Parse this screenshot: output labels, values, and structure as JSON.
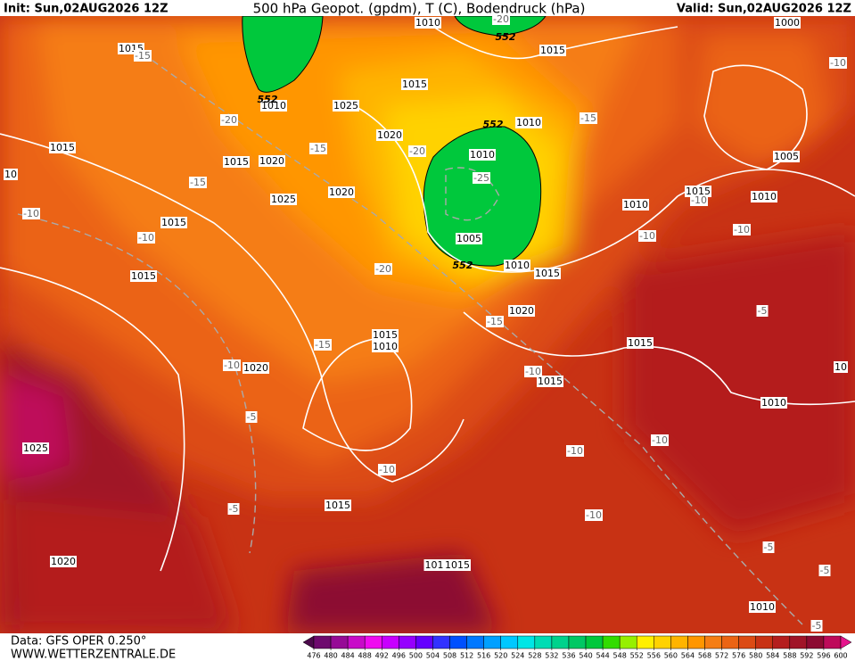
{
  "header": {
    "init": "Init: Sun,02AUG2026 12Z",
    "title": "500 hPa Geopot. (gpdm), T (C), Bodendruck (hPa)",
    "valid": "Valid: Sun,02AUG2026 12Z"
  },
  "map": {
    "isobar_labels": [
      "1015",
      "1010",
      "1015",
      "1015",
      "1025",
      "1010",
      "1010",
      "1020",
      "1015",
      "1015",
      "1020",
      "1010",
      "1005",
      "1025",
      "1020",
      "1015",
      "1010",
      "1010",
      "1015",
      "1005",
      "1010",
      "1015",
      "1015",
      "1020",
      "1015",
      "1015",
      "1010",
      "1020",
      "1015",
      "1010",
      "1025",
      "1015",
      "1020",
      "1015",
      "101",
      "1010",
      "1000",
      "10",
      "10"
    ],
    "temperature_labels": [
      "-15",
      "-20",
      "-15",
      "-20",
      "-15",
      "-25",
      "-10",
      "-10",
      "-15",
      "-10",
      "-10",
      "-10",
      "-10",
      "-20",
      "-15",
      "-5",
      "-15",
      "-10",
      "-10",
      "-5",
      "-10",
      "-10",
      "-10",
      "-5",
      "-10",
      "-5",
      "-5",
      "-5",
      "-20"
    ],
    "height_labels": [
      "552",
      "552",
      "552",
      "552"
    ]
  },
  "colorbar": {
    "levels": [
      476,
      480,
      484,
      488,
      492,
      496,
      500,
      504,
      508,
      512,
      516,
      520,
      524,
      528,
      532,
      536,
      540,
      544,
      548,
      552,
      556,
      560,
      564,
      568,
      572,
      576,
      580,
      584,
      588,
      592,
      596,
      600
    ],
    "colors": [
      "#4b0a4b",
      "#6e0a6e",
      "#960a96",
      "#c80ac8",
      "#f00af0",
      "#c800ff",
      "#9600ff",
      "#6400ff",
      "#3232ff",
      "#0050ff",
      "#0078ff",
      "#00a0ff",
      "#00c8ff",
      "#00e6e6",
      "#00dcb4",
      "#00d28c",
      "#00c864",
      "#00c83c",
      "#32dc00",
      "#96f000",
      "#fff000",
      "#ffd200",
      "#ffb400",
      "#ff9600",
      "#f57d14",
      "#eb6414",
      "#dc4b14",
      "#c83214",
      "#b41e1e",
      "#a01428",
      "#8c0a32",
      "#be0a5a",
      "#e6148c"
    ]
  },
  "footer": {
    "source": "Data: GFS OPER 0.250°",
    "site": "WWW.WETTERZENTRALE.DE"
  }
}
